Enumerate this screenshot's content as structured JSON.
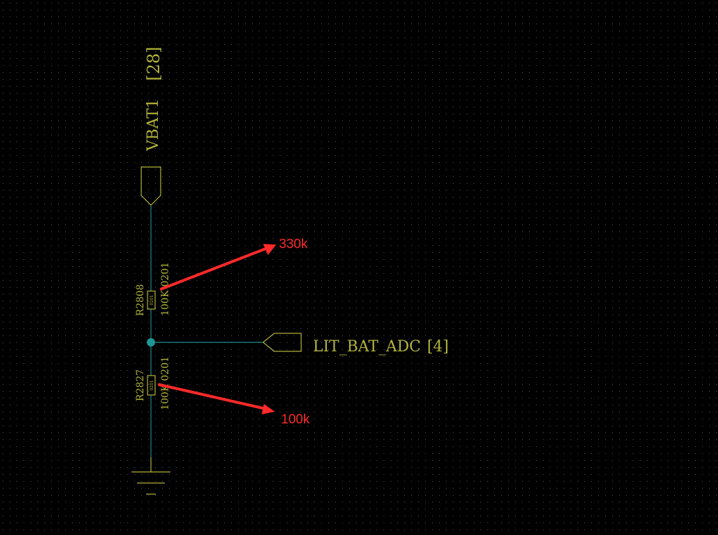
{
  "colors": {
    "background": "#000000",
    "grid_dot": "#5a5a5a",
    "symbol": "#b4b43c",
    "wire": "#1e8c8c",
    "junction": "#1e9696",
    "annotation": "#ff2a2a"
  },
  "power_port": {
    "net": "VBAT1",
    "sheet_ref": "[28]"
  },
  "off_sheet_port": {
    "net": "LIT_BAT_ADC",
    "sheet_ref": "[4]"
  },
  "resistors": [
    {
      "designator": "R2808",
      "value": "100K",
      "footprint": "0201",
      "body_label": "0201"
    },
    {
      "designator": "R2827",
      "value": "100K",
      "footprint": "0201",
      "body_label": "0201"
    }
  ],
  "annotations": [
    {
      "text": "330k",
      "points_to": "R2808"
    },
    {
      "text": "100k",
      "points_to": "R2827"
    }
  ],
  "ground": {
    "symbol": "ground-icon"
  }
}
